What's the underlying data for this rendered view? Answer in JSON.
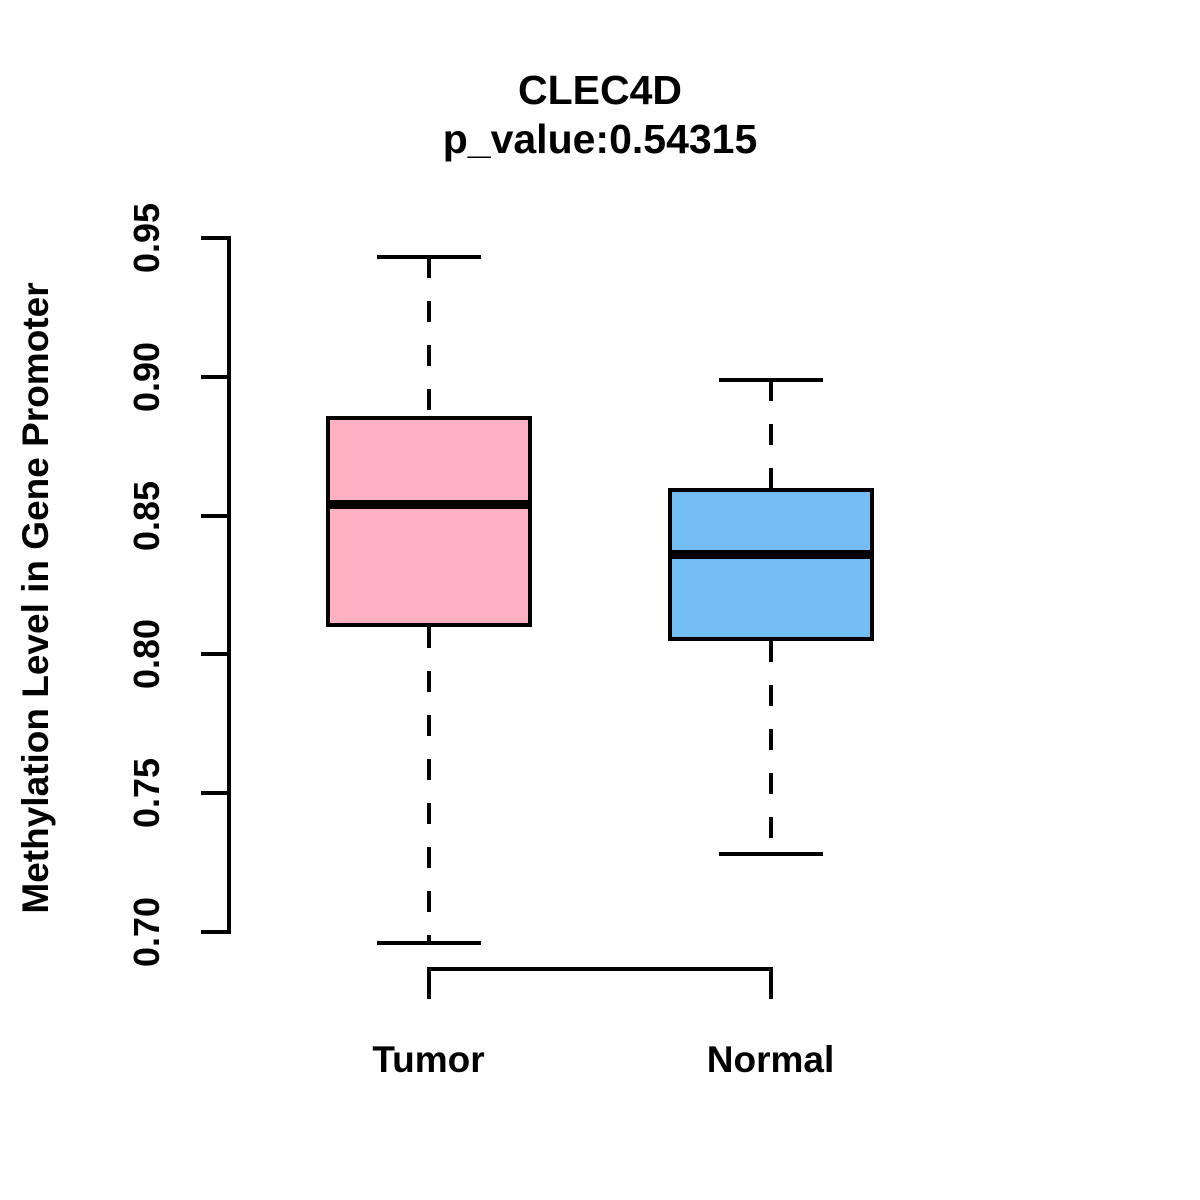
{
  "chart_data": {
    "type": "boxplot",
    "title": "CLEC4D",
    "subtitle": "p_value:0.54315",
    "p_value": 0.54315,
    "ylabel": "Methylation Level in Gene Promoter",
    "xlabel": "",
    "ylim": [
      0.7,
      0.95
    ],
    "yticks": [
      "0.70",
      "0.75",
      "0.80",
      "0.85",
      "0.90",
      "0.95"
    ],
    "grid": false,
    "legend": "none",
    "categories": [
      "Tumor",
      "Normal"
    ],
    "series": [
      {
        "name": "Tumor",
        "whisker_low": 0.696,
        "q1": 0.81,
        "median": 0.854,
        "q3": 0.886,
        "whisker_high": 0.943,
        "fill_color": "#FFB1C1",
        "stroke_color": "#000000"
      },
      {
        "name": "Normal",
        "whisker_low": 0.728,
        "q1": 0.805,
        "median": 0.836,
        "q3": 0.86,
        "whisker_high": 0.899,
        "fill_color": "#74BDF4",
        "stroke_color": "#000000"
      }
    ],
    "comparison_bracket": {
      "from": "Tumor",
      "to": "Normal"
    }
  }
}
